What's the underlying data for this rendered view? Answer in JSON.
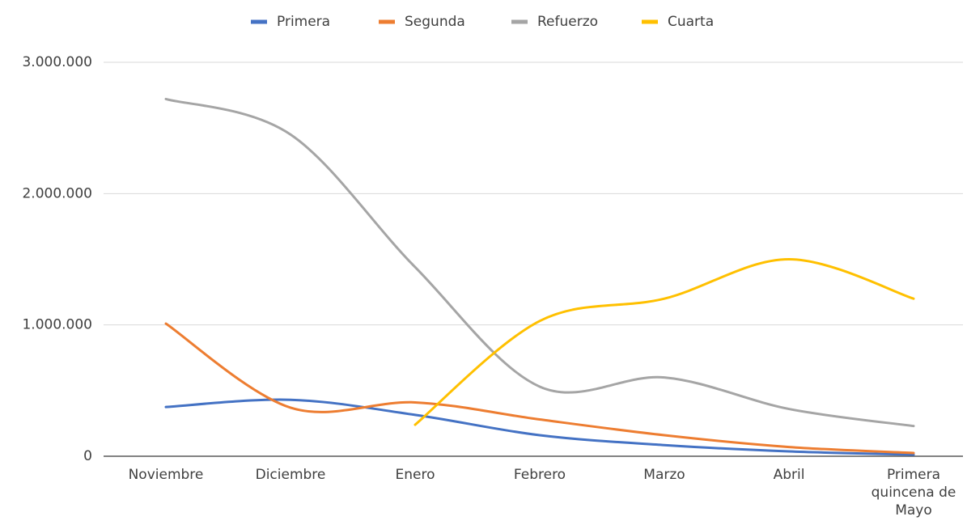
{
  "chart_data": {
    "type": "line",
    "categories": [
      "Noviembre",
      "Diciembre",
      "Enero",
      "Febrero",
      "Marzo",
      "Abril",
      "Primera quincena de Mayo"
    ],
    "series": [
      {
        "name": "Primera",
        "color": "#4472c4",
        "values": [
          375000,
          430000,
          315000,
          160000,
          85000,
          37000,
          12000
        ]
      },
      {
        "name": "Segunda",
        "color": "#ed7d31",
        "values": [
          1010000,
          370000,
          410000,
          280000,
          160000,
          70000,
          25000
        ]
      },
      {
        "name": "Refuerzo",
        "color": "#a5a5a5",
        "values": [
          2720000,
          2450000,
          1440000,
          530000,
          600000,
          360000,
          230000
        ]
      },
      {
        "name": "Cuarta",
        "color": "#ffc000",
        "values": [
          null,
          null,
          240000,
          1030000,
          1200000,
          1500000,
          1200000
        ]
      }
    ],
    "ylim": [
      0,
      3000000
    ],
    "yticks": [
      0,
      {
        "value": 1000000,
        "label": "1.000.000"
      },
      {
        "value": 2000000,
        "label": "2.000.000"
      },
      {
        "value": 3000000,
        "label": "3.000.000"
      }
    ],
    "grid": true,
    "smooth": true,
    "legend": "top"
  }
}
